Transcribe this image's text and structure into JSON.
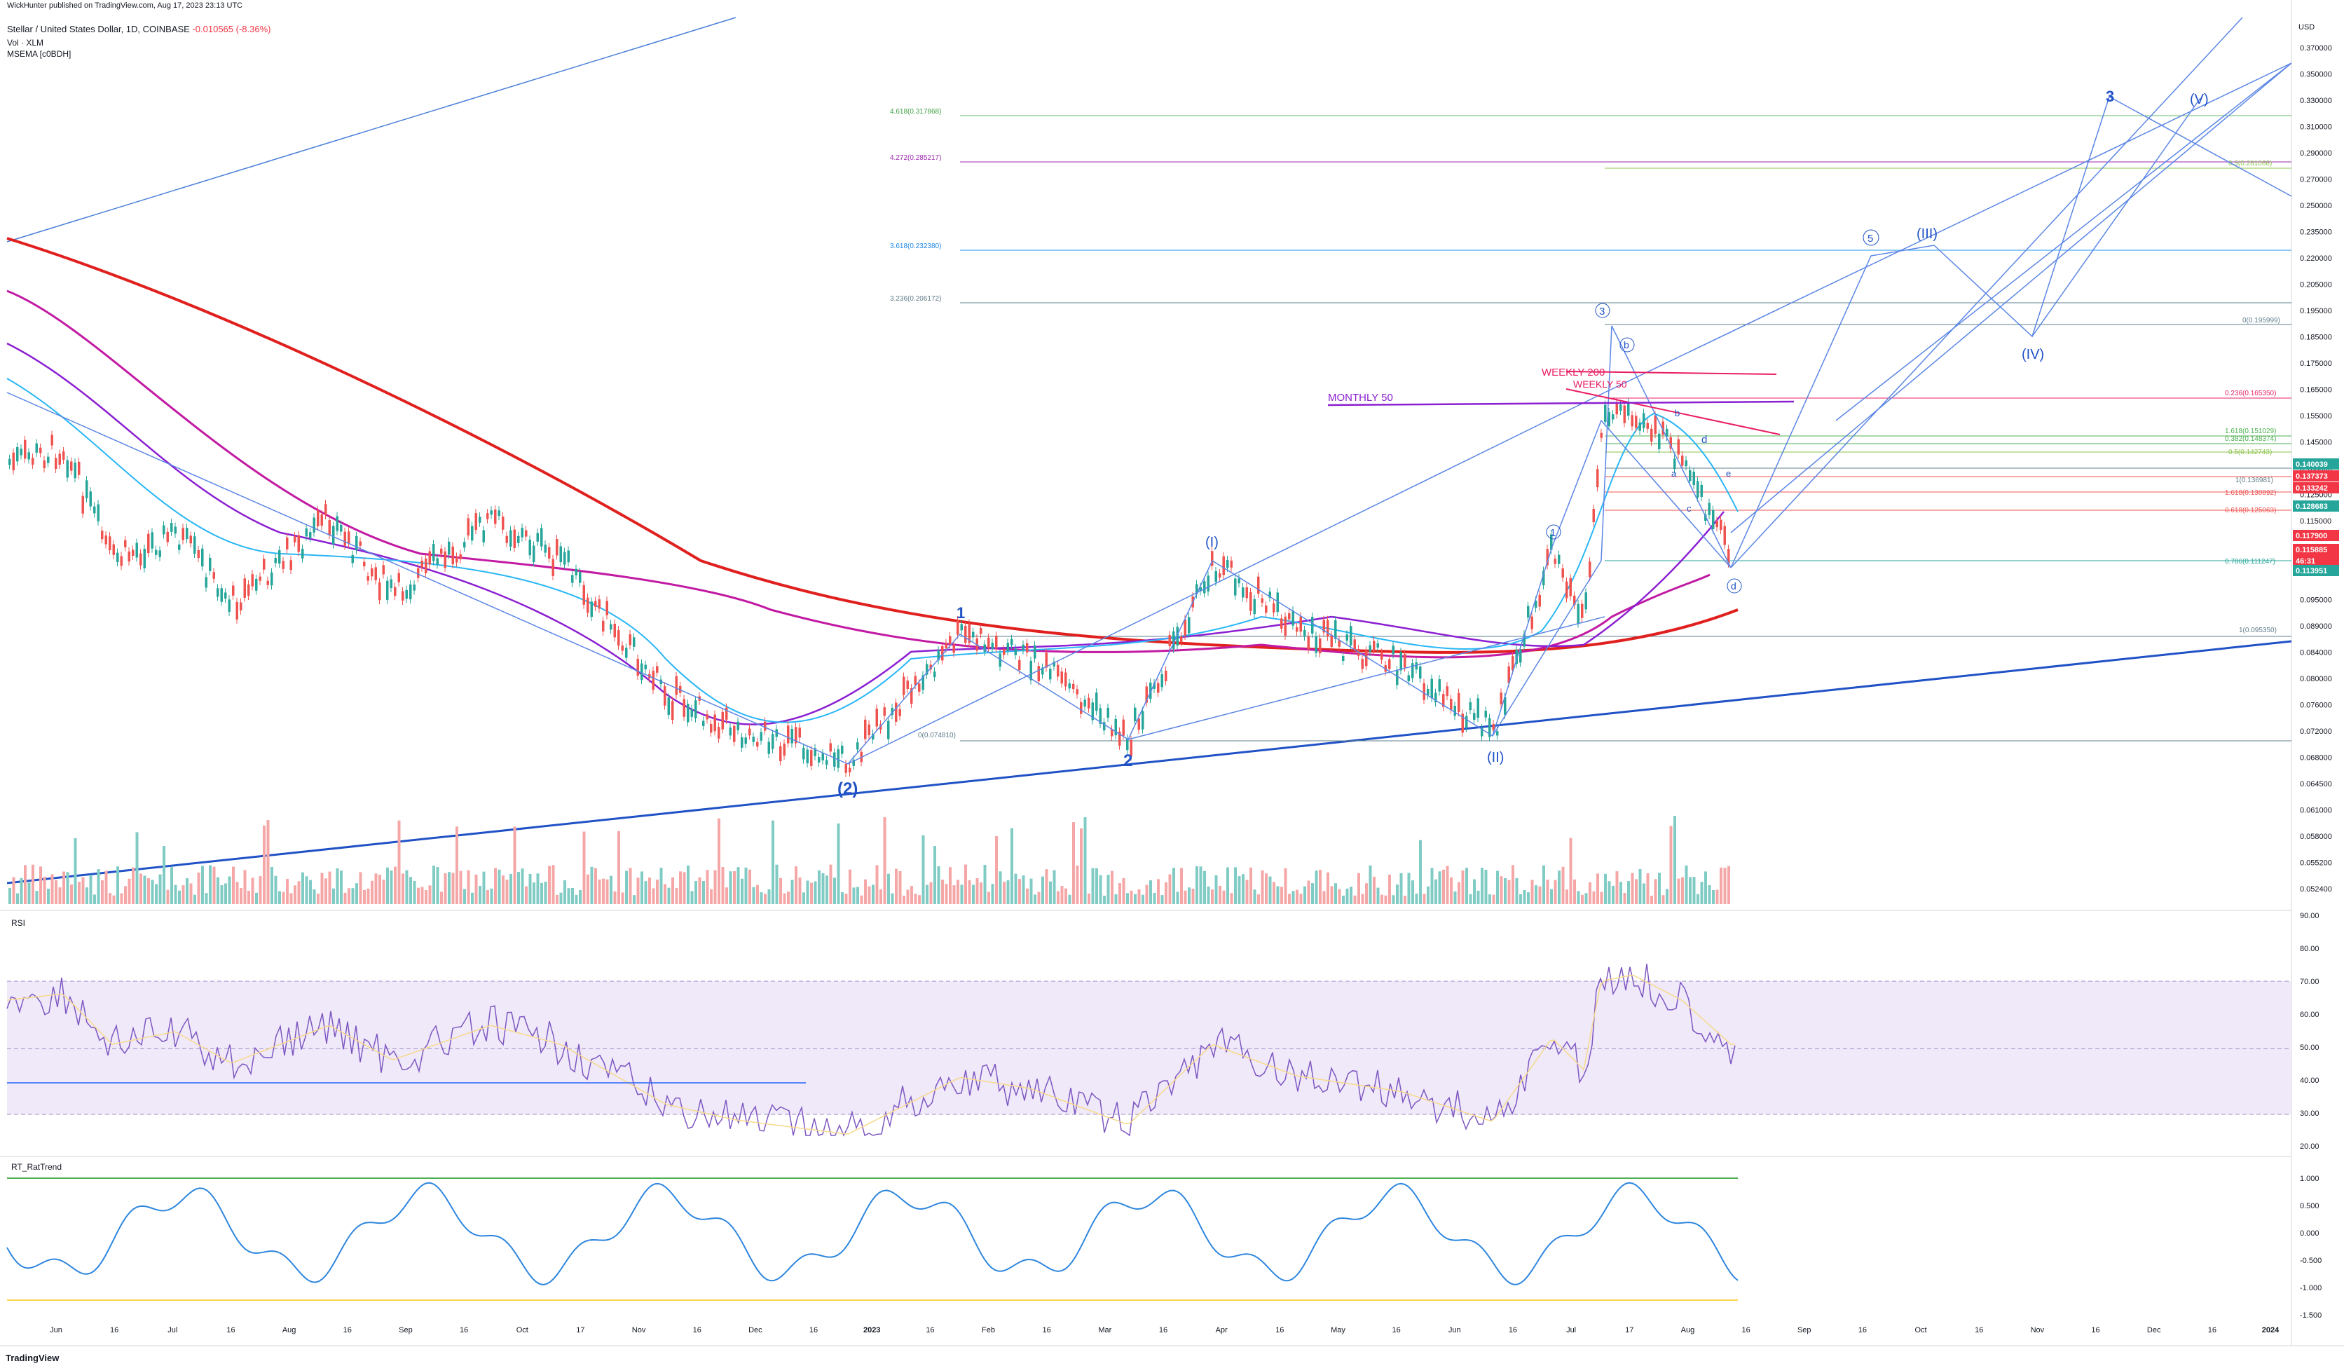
{
  "header": {
    "publisher": "WickHunter published on TradingView.com, Aug 17, 2023 23:13 UTC",
    "symbol": "Stellar / United States Dollar, 1D, COINBASE",
    "change": "-0.010565 (-8.36%)",
    "vol_label": "Vol · XLM",
    "mema_label": "MSEMA [c0BDH]"
  },
  "axis": {
    "currency": "USD",
    "price_ticks": [
      "0.370000",
      "0.350000",
      "0.330000",
      "0.310000",
      "0.290000",
      "0.270000",
      "0.250000",
      "0.235000",
      "0.220000",
      "0.205000",
      "0.195000",
      "0.185000",
      "0.175000",
      "0.165000",
      "0.155000",
      "0.145000",
      "0.135000",
      "0.125000",
      "0.115000",
      "0.107000",
      "0.101000",
      "0.095000",
      "0.089000",
      "0.084000",
      "0.080000",
      "0.076000",
      "0.072000",
      "0.068000",
      "0.064500",
      "0.061000",
      "0.058000",
      "0.055200",
      "0.052400"
    ],
    "rsi_ticks": [
      "90.00",
      "80.00",
      "70.00",
      "60.00",
      "50.00",
      "40.00",
      "30.00",
      "20.00"
    ],
    "rt_ticks": [
      "1.000",
      "0.500",
      "0.000",
      "-0.500",
      "-1.000",
      "-1.500"
    ],
    "time_ticks": [
      "Jun",
      "16",
      "Jul",
      "16",
      "Aug",
      "16",
      "Sep",
      "16",
      "Oct",
      "17",
      "Nov",
      "16",
      "Dec",
      "16",
      "2023",
      "16",
      "Feb",
      "16",
      "Mar",
      "16",
      "Apr",
      "16",
      "May",
      "16",
      "Jun",
      "16",
      "Jul",
      "17",
      "Aug",
      "16",
      "Sep",
      "16",
      "Oct",
      "16",
      "Nov",
      "16",
      "Dec",
      "16",
      "2024"
    ]
  },
  "price_badges": [
    {
      "text": "0.140039",
      "color": "#26a69a"
    },
    {
      "text": "0.137373",
      "color": "#f23645"
    },
    {
      "text": "0.133242",
      "color": "#f23645"
    },
    {
      "text": "0.128683",
      "color": "#26a69a"
    },
    {
      "text": "0.117900",
      "color": "#f23645"
    },
    {
      "text": "0.115885",
      "color": "#f23645"
    },
    {
      "text": "46:31",
      "color": "#f23645"
    },
    {
      "text": "0.113951",
      "color": "#26a69a"
    }
  ],
  "fib_labels": {
    "f4618": "4.618(0.317868)",
    "f4272": "4.272(0.285217)",
    "f3618": "3.618(0.232380)",
    "f3236": "3.236(0.206172)",
    "f05": "0.5(0.281066)",
    "f0": "0(0.195999)",
    "f0236": "0.236(0.165350)",
    "f1618a": "1.618(0.151029)",
    "f1382": "0.382(0.148374)",
    "f05b": "0.5(0.142743)",
    "f1": "1(0.136981)",
    "f1618b": "1.618(0.130892)",
    "f0618": "0.618(0.125063)",
    "f0786": "0.786(0.111247)",
    "f1b": "1(0.095350)",
    "fbase": "0(0.074810)"
  },
  "annotations": {
    "weekly200": "WEEKLY 200",
    "weekly50": "WEEKLY 50",
    "monthly50": "MONTHLY 50",
    "wave_3_big": "3",
    "wave_V": "(V)",
    "wave_III": "(III)",
    "wave_IV": "(IV)",
    "wave_I": "(I)",
    "wave_II": "(II)",
    "wave_2_paren": "(2)",
    "wave_1": "1",
    "wave_2": "2",
    "c1": "1",
    "c3": "3",
    "c5": "5",
    "cb": "b",
    "cd": "d",
    "b": "b",
    "d": "d",
    "a": "a",
    "c": "c",
    "e": "e"
  },
  "panes": {
    "rsi": "RSI",
    "rt": "RT_RatTrend"
  },
  "footer": "TradingView",
  "colors": {
    "up": "#26a69a",
    "down": "#ef5350",
    "ma200": "#e0201e",
    "ma_magenta": "#b0209c",
    "ma_purple": "#8b1fd1",
    "wave_blue": "#2a64d2",
    "rsi_bg": "#efe9f9",
    "rsi_line": "#7e57c2"
  }
}
